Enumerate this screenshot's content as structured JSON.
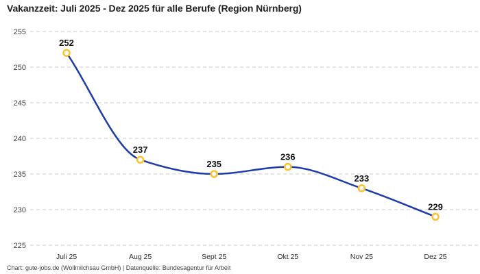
{
  "chart": {
    "title": "Vakanzzeit: Juli 2025 - Dez 2025 für alle Berufe (Region Nürnberg)",
    "footer": "Chart: gute-jobs.de (Wollmilchsau GmbH) | Datenquelle: Bundesagentur für Arbeit"
  },
  "chart_data": {
    "type": "line",
    "title": "Vakanzzeit: Juli 2025 - Dez 2025 für alle Berufe (Region Nürnberg)",
    "categories": [
      "Juli 25",
      "Aug 25",
      "Sept 25",
      "Okt 25",
      "Nov 25",
      "Dez 25"
    ],
    "values": [
      252,
      237,
      235,
      236,
      233,
      229
    ],
    "data_labels": [
      252,
      237,
      235,
      236,
      233,
      229
    ],
    "yticks": [
      255,
      250,
      245,
      240,
      235,
      230,
      225
    ],
    "ylim": [
      225,
      255
    ],
    "xlabel": "",
    "ylabel": "",
    "grid": "horizontal-dashed",
    "legend_position": "none",
    "curve": "smooth-monotone",
    "colors": {
      "line": "#1e3ca8",
      "marker_stroke": "#fdc02f",
      "marker_fill": "#ffffff",
      "gridline": "#c9c9c9"
    },
    "footnote": "Chart: gute-jobs.de (Wollmilchsau GmbH) | Datenquelle: Bundesagentur für Arbeit"
  }
}
